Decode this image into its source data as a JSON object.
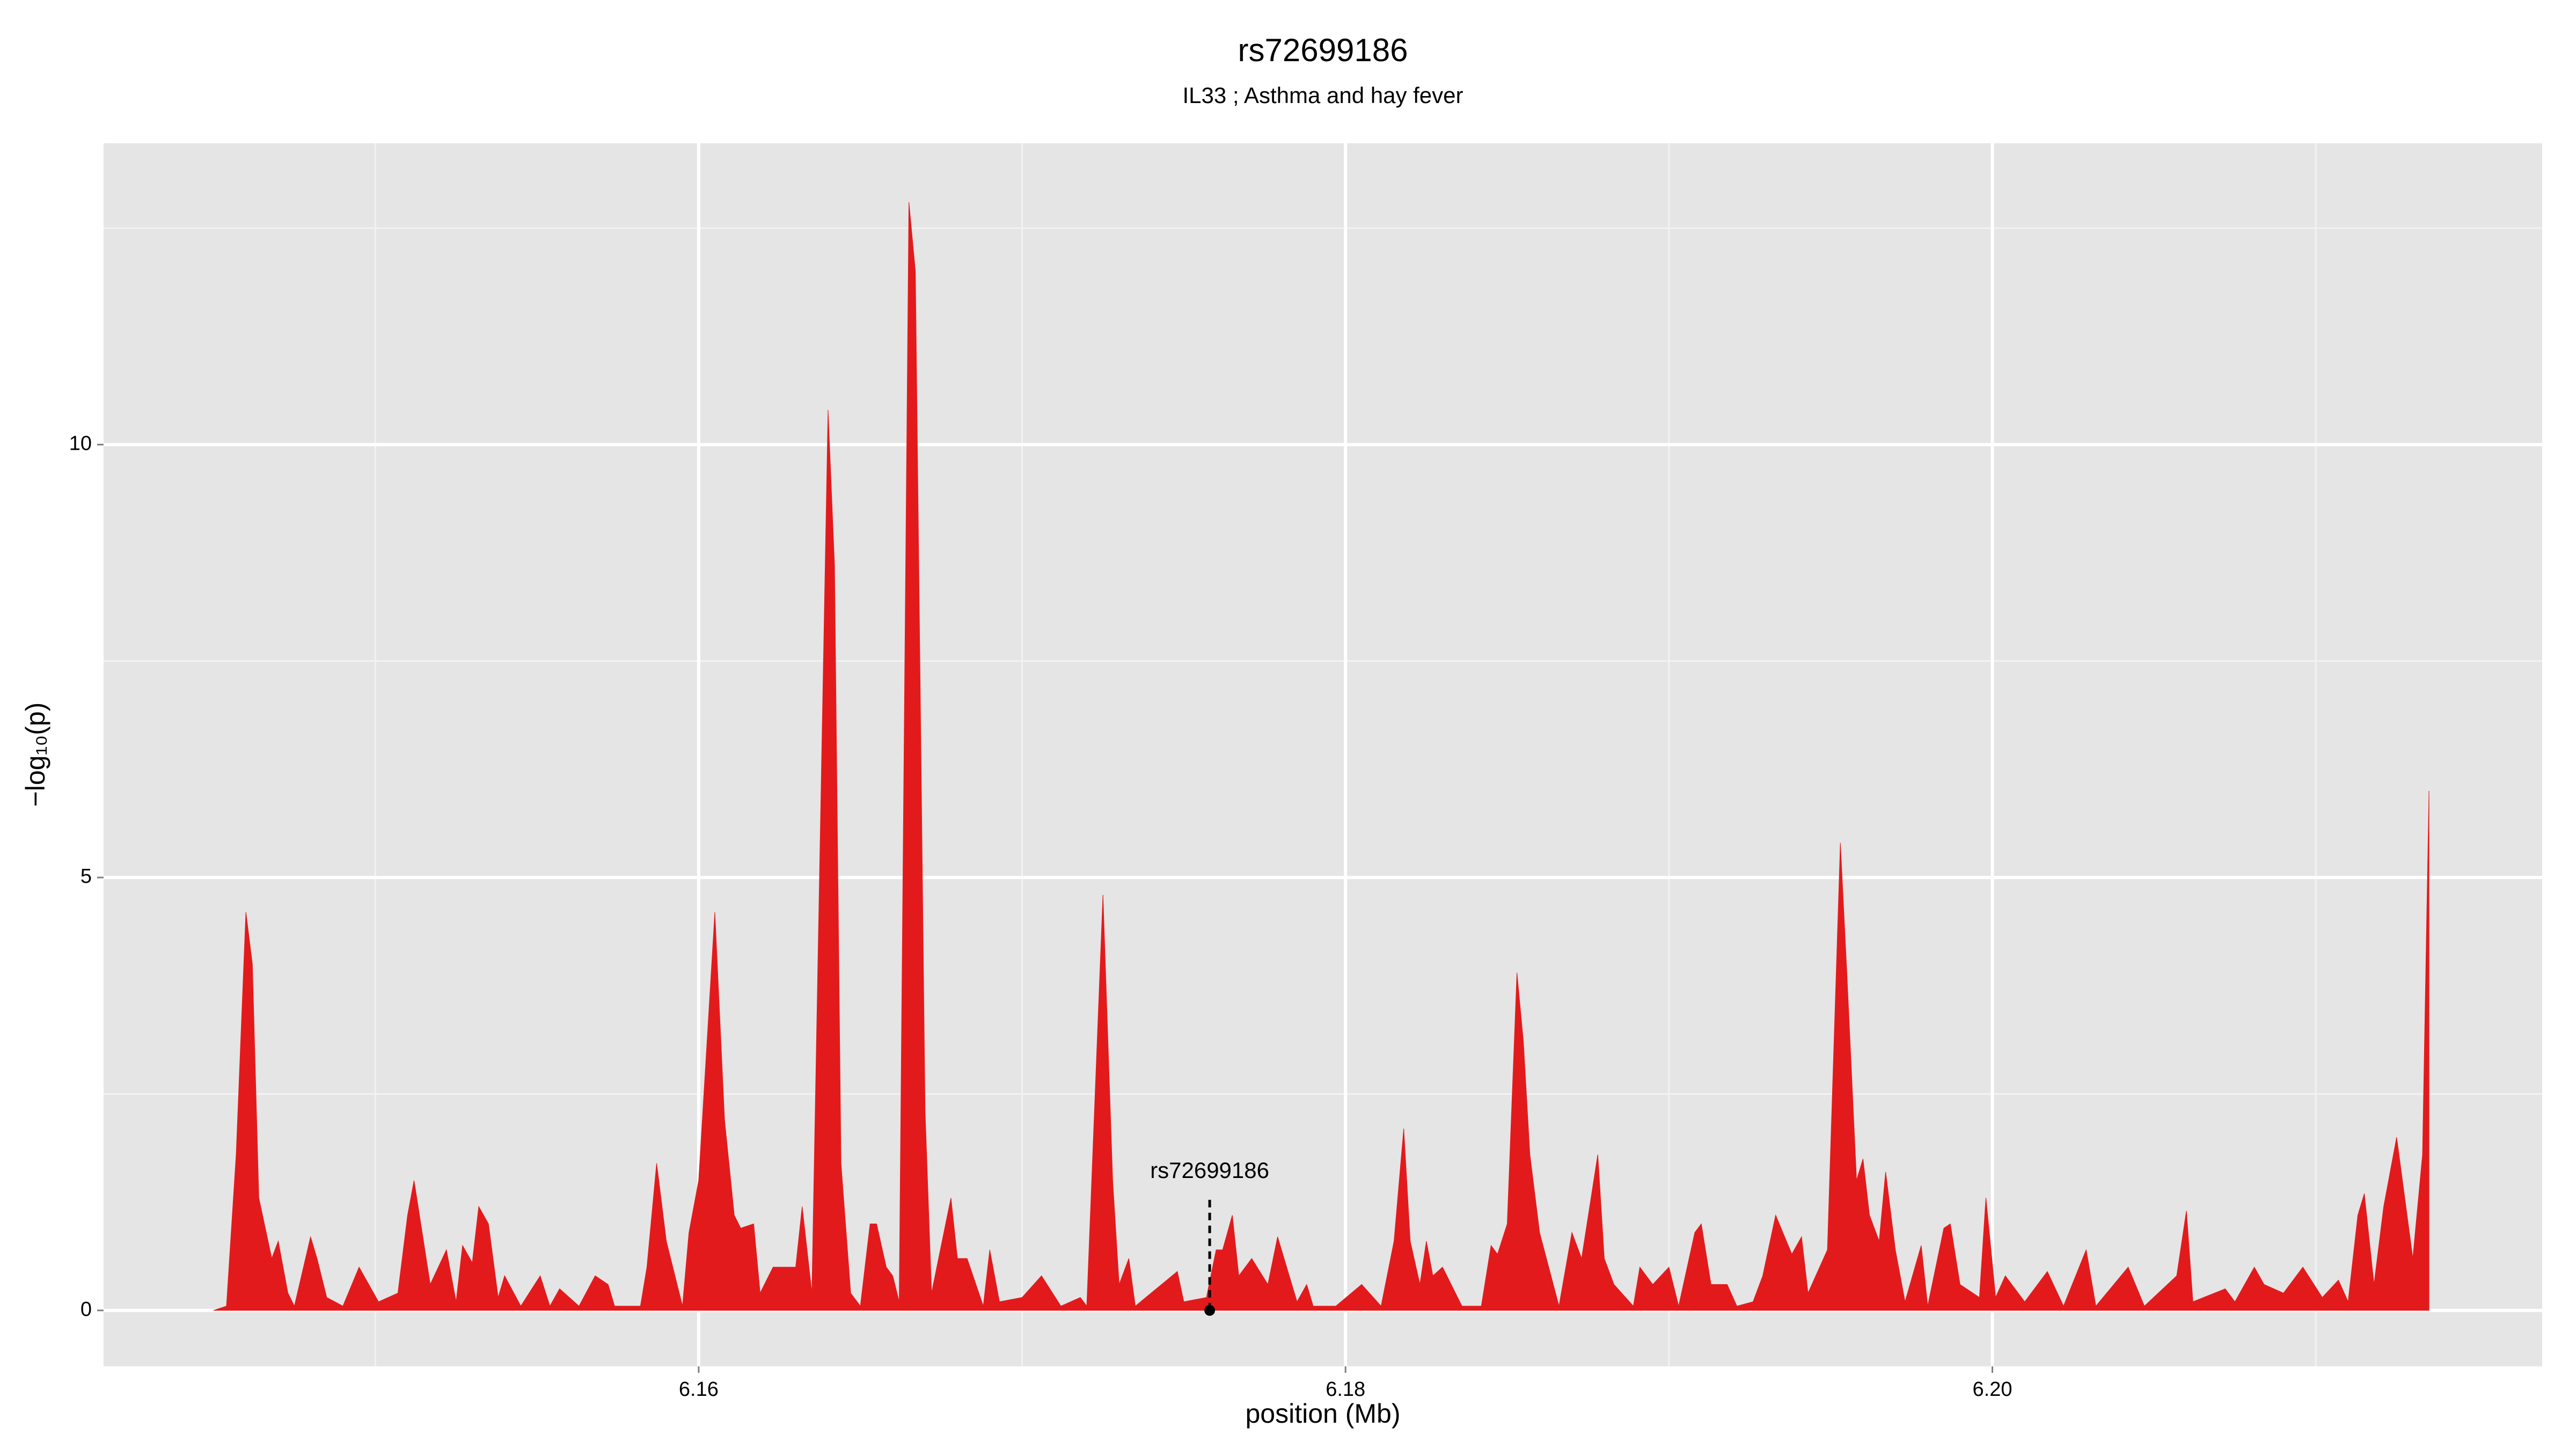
{
  "chart_data": {
    "type": "area",
    "title": "rs72699186",
    "subtitle": "IL33  ; Asthma and hay fever",
    "xlabel": "position (Mb)",
    "ylabel": "−log₁₀(p)",
    "xlim": [
      6.1416,
      6.217
    ],
    "ylim": [
      -0.646,
      13.48
    ],
    "xticks": [
      6.16,
      6.18,
      {
        "value": 6.2,
        "label": "6.20"
      }
    ],
    "yticks": [
      0,
      5,
      10
    ],
    "xminor": [
      6.15,
      6.17,
      6.19,
      6.21
    ],
    "yminor": [
      2.5,
      7.5,
      12.5
    ],
    "grid": true,
    "x": [
      6.145,
      6.1454,
      6.1457,
      6.146,
      6.1462,
      6.1464,
      6.1468,
      6.147,
      6.1473,
      6.1475,
      6.148,
      6.1482,
      6.1485,
      6.149,
      6.1495,
      6.1501,
      6.1507,
      6.151,
      6.1512,
      6.1517,
      6.1522,
      6.1525,
      6.1527,
      6.153,
      6.1532,
      6.1535,
      6.1538,
      6.154,
      6.1545,
      6.1551,
      6.1554,
      6.1557,
      6.1563,
      6.1568,
      6.1572,
      6.1574,
      6.1582,
      6.1584,
      6.1587,
      6.159,
      6.1595,
      6.1597,
      6.16,
      6.1605,
      6.1608,
      6.1611,
      6.1613,
      6.1617,
      6.1619,
      6.1623,
      6.163,
      6.1632,
      6.1635,
      6.164,
      6.1642,
      6.1644,
      6.1647,
      6.165,
      6.1653,
      6.1655,
      6.1658,
      6.166,
      6.1662,
      6.1665,
      6.1667,
      6.167,
      6.1672,
      6.1678,
      6.168,
      6.1683,
      6.1688,
      6.169,
      6.1693,
      6.17,
      6.1706,
      6.1712,
      6.1718,
      6.172,
      6.1725,
      6.1728,
      6.173,
      6.1733,
      6.1735,
      6.1748,
      6.175,
      6.1757,
      6.176,
      6.1762,
      6.1765,
      6.1767,
      6.1771,
      6.1776,
      6.1779,
      6.1785,
      6.1788,
      6.179,
      6.1797,
      6.1805,
      6.1811,
      6.1815,
      6.1818,
      6.182,
      6.1823,
      6.1825,
      6.1827,
      6.183,
      6.1836,
      6.1842,
      6.1845,
      6.1847,
      6.185,
      6.1853,
      6.1855,
      6.1857,
      6.186,
      6.1866,
      6.187,
      6.1873,
      6.1878,
      6.188,
      6.1883,
      6.1889,
      6.1891,
      6.1895,
      6.19,
      6.1903,
      6.1908,
      6.191,
      6.1913,
      6.1918,
      6.1921,
      6.1926,
      6.1929,
      6.1933,
      6.1938,
      6.1941,
      6.1943,
      6.1949,
      6.1953,
      6.1955,
      6.1958,
      6.196,
      6.1962,
      6.1965,
      6.1967,
      6.197,
      6.1973,
      6.1978,
      6.198,
      6.1985,
      6.1987,
      6.199,
      6.1996,
      6.1998,
      6.2001,
      6.2004,
      6.201,
      6.2017,
      6.2022,
      6.2029,
      6.2032,
      6.2042,
      6.2047,
      6.2057,
      6.206,
      6.2062,
      6.2072,
      6.2075,
      6.2081,
      6.2084,
      6.209,
      6.2096,
      6.2102,
      6.2107,
      6.211,
      6.2113,
      6.2115,
      6.2118,
      6.2121,
      6.2125,
      6.213,
      6.2133,
      6.2135
    ],
    "series": [
      {
        "color": "#e31a1c",
        "values": [
          0,
          0.05,
          1.8,
          4.6,
          4.0,
          1.3,
          0.6,
          0.8,
          0.2,
          0.05,
          0.85,
          0.6,
          0.15,
          0.05,
          0.5,
          0.1,
          0.2,
          1.1,
          1.5,
          0.3,
          0.7,
          0.1,
          0.75,
          0.55,
          1.2,
          1.0,
          0.15,
          0.4,
          0.05,
          0.4,
          0.05,
          0.25,
          0.05,
          0.4,
          0.3,
          0.05,
          0.05,
          0.5,
          1.7,
          0.8,
          0.05,
          0.9,
          1.5,
          4.6,
          2.2,
          1.1,
          0.95,
          1.0,
          0.2,
          0.5,
          0.5,
          1.2,
          0.2,
          10.4,
          8.6,
          1.7,
          0.2,
          0.05,
          1.0,
          1.0,
          0.5,
          0.4,
          0.1,
          12.8,
          12.0,
          2.3,
          0.2,
          1.3,
          0.6,
          0.6,
          0.05,
          0.7,
          0.1,
          0.15,
          0.4,
          0.05,
          0.15,
          0.05,
          4.8,
          1.5,
          0.3,
          0.6,
          0.05,
          0.45,
          0.1,
          0.15,
          0.7,
          0.7,
          1.1,
          0.4,
          0.6,
          0.3,
          0.85,
          0.1,
          0.3,
          0.05,
          0.05,
          0.3,
          0.05,
          0.8,
          2.1,
          0.8,
          0.3,
          0.8,
          0.4,
          0.5,
          0.05,
          0.05,
          0.75,
          0.65,
          1.0,
          3.9,
          3.1,
          1.8,
          0.9,
          0.05,
          0.9,
          0.6,
          1.8,
          0.6,
          0.3,
          0.05,
          0.5,
          0.3,
          0.5,
          0.05,
          0.9,
          1.0,
          0.3,
          0.3,
          0.05,
          0.1,
          0.4,
          1.1,
          0.65,
          0.85,
          0.2,
          0.7,
          5.4,
          3.9,
          1.5,
          1.75,
          1.1,
          0.8,
          1.6,
          0.7,
          0.1,
          0.75,
          0.05,
          0.95,
          1.0,
          0.3,
          0.15,
          1.3,
          0.15,
          0.4,
          0.1,
          0.45,
          0.05,
          0.7,
          0.05,
          0.5,
          0.05,
          0.4,
          1.15,
          0.1,
          0.25,
          0.1,
          0.5,
          0.3,
          0.2,
          0.5,
          0.15,
          0.35,
          0.1,
          1.1,
          1.35,
          0.3,
          1.2,
          2.0,
          0.6,
          1.8,
          6.0
        ]
      }
    ],
    "annotation": {
      "text": "rs72699186",
      "x": 6.1758,
      "y": 0
    }
  }
}
